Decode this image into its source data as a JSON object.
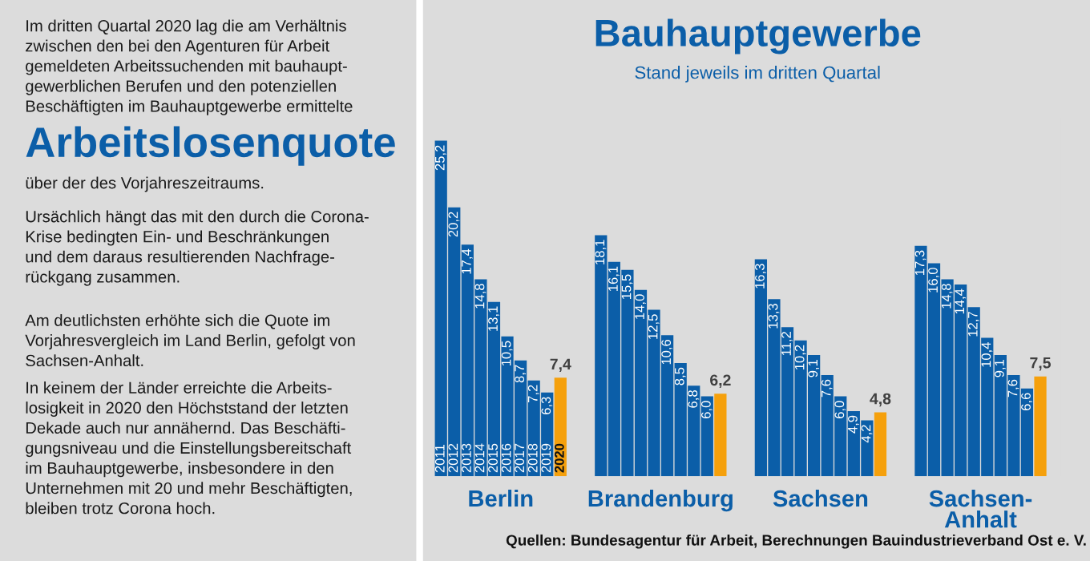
{
  "chart_data": [
    {
      "type": "other",
      "annotations": [
        "Im dritten Quartal 2020 lag die am Verhältnis\nzwischen den bei den Agenturen für Arbeit\ngemeldeten Arbeitssuchenden mit bauhaupt-\ngewerblichen Berufen und den potenziellen\nBeschäftigten im Bauhauptgewerbe ermittelte",
        "Arbeitslosenquote",
        "über der des Vorjahreszeitraums.",
        "Ursächlich hängt das mit den durch die Corona-\nKrise bedingten Ein- und Beschränkungen\nund dem daraus resultierenden Nachfrage-\nrückgang zusammen.",
        "Am deutlichsten erhöhte sich die Quote im\nVorjahresvergleich im Land Berlin, gefolgt von\nSachsen-Anhalt.",
        "In keinem der Länder erreichte die Arbeits-\nlosigkeit in 2020 den Höchststand der letzten\nDekade auch nur annähernd. Das Beschäfti-\ngungsniveau und die Einstellungsbereitschaft\nim Bauhauptgewerbe, insbesondere in den\nUnternehmen mit 20 und mehr Beschäftigten,\nbleiben trotz Corona hoch."
      ]
    },
    {
      "type": "bar",
      "title": "Bauhauptgewerbe",
      "subtitle": "Stand jeweils im dritten Quartal",
      "annotations": [
        "Quellen: Bundesagentur für Arbeit, Berechnungen Bauindustrieverband Ost e. V."
      ],
      "categories": [
        "Berlin",
        "Brandenburg",
        "Sachsen",
        "Sachsen-\nAnhalt"
      ],
      "series": [
        {
          "name": "2011",
          "color": "#0b5ea8",
          "values": [
            25.2,
            18.1,
            16.3,
            17.3
          ],
          "value_labels": [
            "25,2",
            "18,1",
            "16,3",
            "17,3"
          ]
        },
        {
          "name": "2012",
          "color": "#0b5ea8",
          "values": [
            20.2,
            16.1,
            13.3,
            16.0
          ],
          "value_labels": [
            "20,2",
            "16,1",
            "13,3",
            "16,0"
          ]
        },
        {
          "name": "2013",
          "color": "#0b5ea8",
          "values": [
            17.4,
            15.5,
            11.2,
            14.8
          ],
          "value_labels": [
            "17,4",
            "15,5",
            "11,2",
            "14,8"
          ]
        },
        {
          "name": "2014",
          "color": "#0b5ea8",
          "values": [
            14.8,
            14.0,
            10.2,
            14.4
          ],
          "value_labels": [
            "14,8",
            "14,0",
            "10,2",
            "14,4"
          ]
        },
        {
          "name": "2015",
          "color": "#0b5ea8",
          "values": [
            13.1,
            12.5,
            9.1,
            12.7
          ],
          "value_labels": [
            "13,1",
            "12,5",
            "9,1",
            "12,7"
          ]
        },
        {
          "name": "2016",
          "color": "#0b5ea8",
          "values": [
            10.5,
            10.6,
            7.6,
            10.4
          ],
          "value_labels": [
            "10,5",
            "10,6",
            "7,6",
            "10,4"
          ]
        },
        {
          "name": "2017",
          "color": "#0b5ea8",
          "values": [
            8.7,
            8.5,
            6.0,
            9.1
          ],
          "value_labels": [
            "8,7",
            "8,5",
            "6,0",
            "9,1"
          ]
        },
        {
          "name": "2018",
          "color": "#0b5ea8",
          "values": [
            7.2,
            6.8,
            4.9,
            7.6
          ],
          "value_labels": [
            "7,2",
            "6,8",
            "4,9",
            "7,6"
          ]
        },
        {
          "name": "2019",
          "color": "#0b5ea8",
          "values": [
            6.3,
            6.0,
            4.2,
            6.6
          ],
          "value_labels": [
            "6,3",
            "6,0",
            "4,2",
            "6,6"
          ]
        },
        {
          "name": "2020",
          "color": "#f5a00c",
          "values": [
            7.4,
            6.2,
            4.8,
            7.5
          ],
          "value_labels": [
            "7,4",
            "6,2",
            "4,8",
            "7,5"
          ]
        }
      ]
    }
  ]
}
